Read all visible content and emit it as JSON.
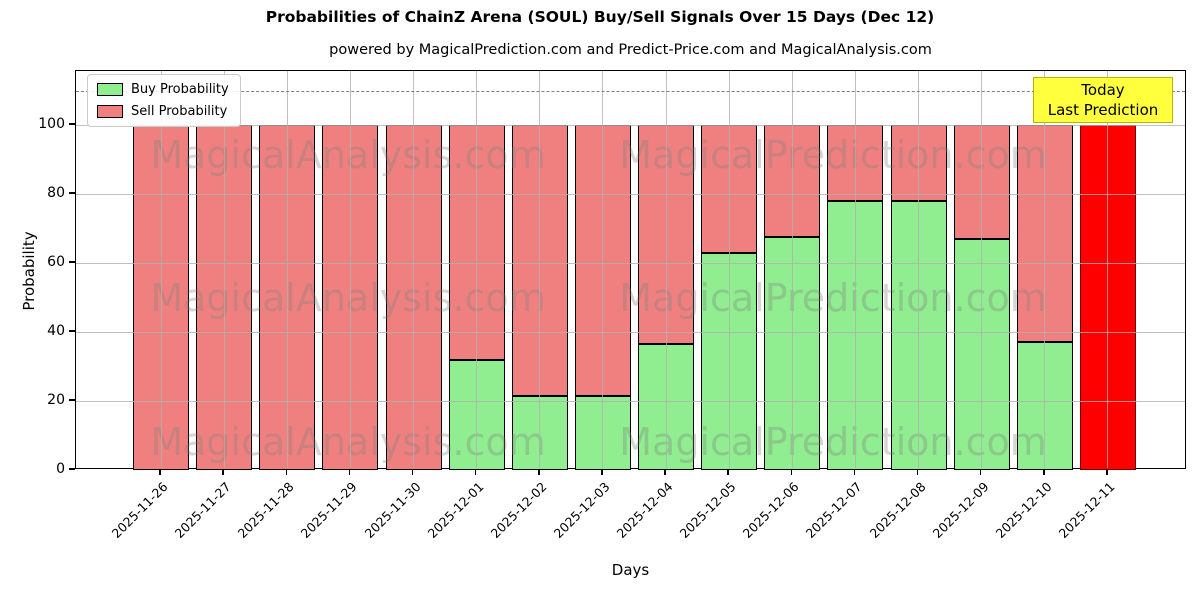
{
  "title": "Probabilities of ChainZ Arena (SOUL) Buy/Sell Signals Over 15 Days (Dec 12)",
  "subtitle": "powered by MagicalPrediction.com and Predict-Price.com and MagicalAnalysis.com",
  "axes": {
    "ylabel": "Probability",
    "xlabel": "Days",
    "yticks": [
      0,
      20,
      40,
      60,
      80,
      100
    ],
    "ylim": [
      0,
      115.7
    ],
    "threshold_line_y": 110,
    "grid": "on"
  },
  "legend": {
    "position": "upper-left",
    "buy_label": "Buy Probability",
    "sell_label": "Sell Probability"
  },
  "annotation": {
    "line1": "Today",
    "line2": "Last Prediction"
  },
  "watermarks": {
    "left_text": "MagicalAnalysis.com",
    "right_text": "MagicalPrediction.com"
  },
  "colors": {
    "buy": "#90ee90",
    "sell": "#f08080",
    "bar_edge": "#000000",
    "today_bar": "#ff0000",
    "today_bar_edge": "#7a0000",
    "annotation_bg": "#ffff3d",
    "annotation_border": "#b8b400",
    "grid": "#b0b0b0"
  },
  "chart_data": {
    "type": "bar",
    "stacked": true,
    "title": "Probabilities of ChainZ Arena (SOUL) Buy/Sell Signals Over 15 Days (Dec 12)",
    "xlabel": "Days",
    "ylabel": "Probability",
    "ylim": [
      0,
      115.7
    ],
    "categories": [
      "2025-11-26",
      "2025-11-27",
      "2025-11-28",
      "2025-11-29",
      "2025-11-30",
      "2025-12-01",
      "2025-12-02",
      "2025-12-03",
      "2025-12-04",
      "2025-12-05",
      "2025-12-06",
      "2025-12-07",
      "2025-12-08",
      "2025-12-09",
      "2025-12-10",
      "2025-12-11"
    ],
    "series": [
      {
        "name": "Buy Probability",
        "color": "#90ee90",
        "values": [
          0,
          0,
          0,
          0,
          0,
          32,
          21.5,
          21.5,
          36.5,
          63,
          67.5,
          78,
          78,
          67,
          37,
          0
        ]
      },
      {
        "name": "Sell Probability",
        "color": "#f08080",
        "values": [
          100,
          100,
          100,
          100,
          100,
          68,
          78.5,
          78.5,
          63.5,
          37,
          32.5,
          22,
          22,
          33,
          63,
          100
        ]
      }
    ],
    "highlight_last_bar": true,
    "legend_position": "upper left"
  }
}
